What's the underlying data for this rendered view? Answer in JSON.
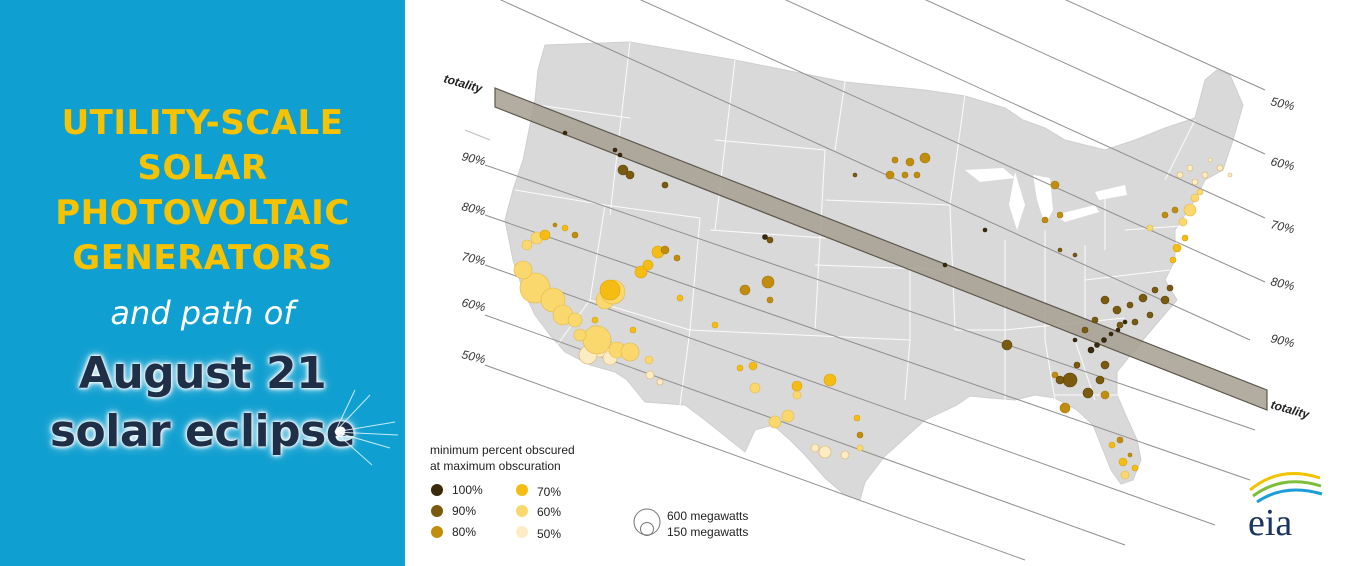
{
  "panel": {
    "title_lines": [
      "UTILITY-SCALE",
      "SOLAR",
      "PHOTOVOLTAIC",
      "GENERATORS"
    ],
    "subtitle": "and path of",
    "headline_lines": [
      "August 21",
      "solar eclipse"
    ]
  },
  "map": {
    "left_labels": [
      "90%",
      "80%",
      "70%",
      "60%",
      "50%"
    ],
    "right_labels": [
      "50%",
      "60%",
      "70%",
      "80%",
      "90%"
    ],
    "totality_label": "totality",
    "colors": {
      "land": "#d9d9d9",
      "borders": "#ffffff",
      "totality_band": "#a59d91",
      "lines": "#888888"
    }
  },
  "legend": {
    "title_lines": [
      "minimum percent obscured",
      "at maximum obscuration"
    ],
    "items": [
      {
        "label": "100%",
        "color": "#3b2a0a"
      },
      {
        "label": "90%",
        "color": "#7a5a0e"
      },
      {
        "label": "80%",
        "color": "#c08d0e"
      },
      {
        "label": "70%",
        "color": "#f5bd14"
      },
      {
        "label": "60%",
        "color": "#fbd86d"
      },
      {
        "label": "50%",
        "color": "#fdebc4"
      }
    ],
    "size_labels": [
      "600 megawatts",
      "150 megawatts"
    ]
  },
  "logo": {
    "text": "eia",
    "colors": [
      "#f3c300",
      "#7bbf3a",
      "#1d9dd8"
    ]
  }
}
